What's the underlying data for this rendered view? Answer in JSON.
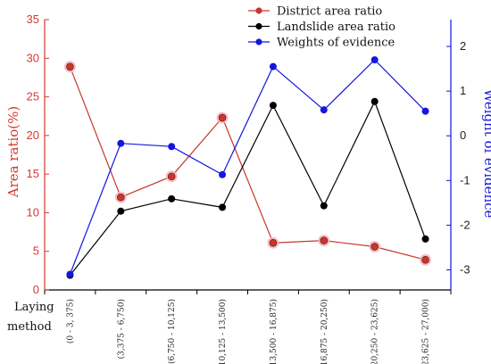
{
  "chart_data": {
    "type": "line",
    "categories": [
      "(0 - 3, 375)",
      "(3,375 - 6,750)",
      "(6,750 - 10,125)",
      "(10,125 - 13,500)",
      "(13,500 - 16,875)",
      "(16,875 - 20,250)",
      "(20,250 - 23,625)",
      "(23,625 - 27,000)"
    ],
    "xlabel": "Laying method",
    "ylabel_left": "Area ratio(%)",
    "ylabel_right": "Weight of evidence",
    "ylim_left": [
      0,
      35
    ],
    "yticks_left": [
      "0",
      "5",
      "10",
      "15",
      "20",
      "25",
      "30",
      "35"
    ],
    "ylim_right": [
      -3.45,
      2.6
    ],
    "yticks_right": [
      "-3",
      "-2",
      "-1",
      "0",
      "1",
      "2"
    ],
    "legend_position": "top-right",
    "series": [
      {
        "name": "District area ratio",
        "axis": "left",
        "color": "#c8372b",
        "values": [
          28.9,
          12.0,
          14.7,
          22.3,
          6.1,
          6.4,
          5.6,
          3.9
        ]
      },
      {
        "name": "Landslide area ratio",
        "axis": "left",
        "color": "#000000",
        "values": [
          1.9,
          10.2,
          11.8,
          10.7,
          23.9,
          10.9,
          24.4,
          6.6
        ]
      },
      {
        "name": "Weights of evidence",
        "axis": "right",
        "color": "#1515e0",
        "values": [
          -3.1,
          -0.17,
          -0.24,
          -0.87,
          1.55,
          0.58,
          1.7,
          0.55
        ]
      }
    ],
    "axis_colors": {
      "left": "#d43a2f",
      "right": "#1515e0"
    }
  }
}
